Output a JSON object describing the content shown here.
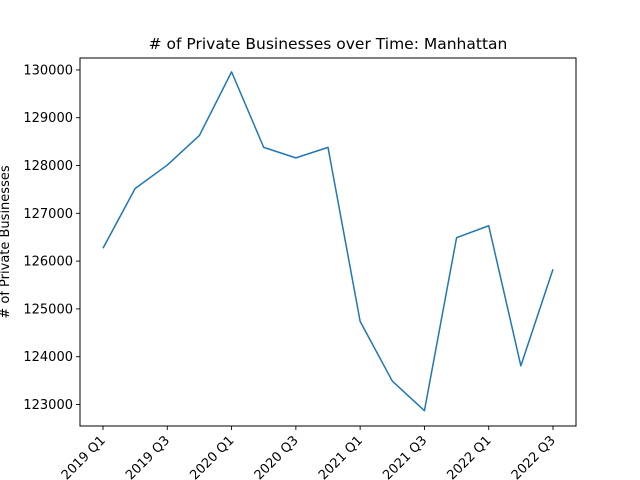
{
  "chart_data": {
    "type": "line",
    "title": "# of Private Businesses over Time: Manhattan",
    "xlabel": "",
    "ylabel": "# of Private Businesses",
    "x": [
      "2019 Q1",
      "2019 Q2",
      "2019 Q3",
      "2019 Q4",
      "2020 Q1",
      "2020 Q2",
      "2020 Q3",
      "2020 Q4",
      "2021 Q1",
      "2021 Q2",
      "2021 Q3",
      "2021 Q4",
      "2022 Q1",
      "2022 Q2",
      "2022 Q3"
    ],
    "x_tick_labels": [
      "2019 Q1",
      "2019 Q3",
      "2020 Q1",
      "2020 Q3",
      "2021 Q1",
      "2021 Q3",
      "2022 Q1",
      "2022 Q3"
    ],
    "series": [
      {
        "color": "#1f77b4",
        "values": [
          126270,
          127520,
          128010,
          128630,
          129960,
          128380,
          128160,
          128380,
          124740,
          123490,
          122870,
          126490,
          126740,
          123810,
          125830
        ]
      }
    ],
    "ylim": [
      122550,
      130250
    ],
    "y_ticks": [
      123000,
      124000,
      125000,
      126000,
      127000,
      128000,
      129000,
      130000
    ],
    "grid": false,
    "legend": "none"
  }
}
